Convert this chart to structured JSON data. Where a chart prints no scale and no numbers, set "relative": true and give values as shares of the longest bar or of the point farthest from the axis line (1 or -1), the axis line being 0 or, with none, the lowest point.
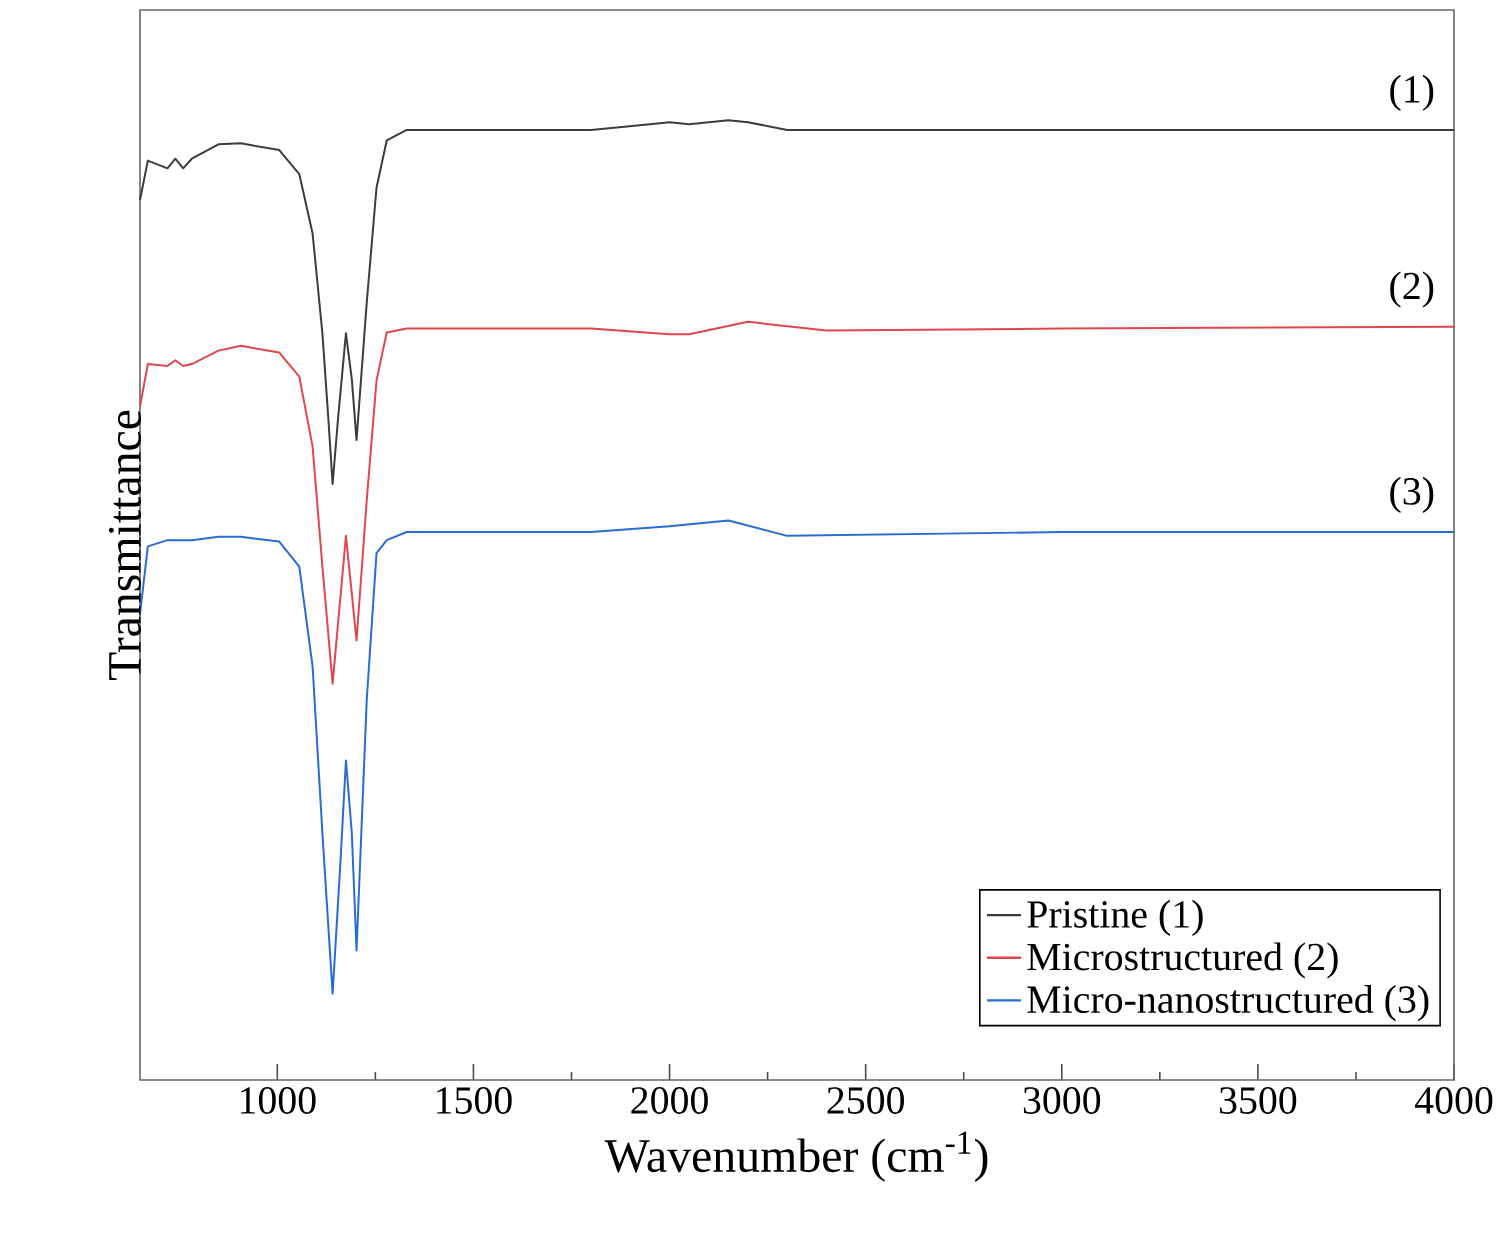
{
  "chart_data": {
    "type": "line",
    "relative": true,
    "xlabel": "Wavenumber (cm$^{-1}$)",
    "ylabel": "Transmittance",
    "xlim": [
      650,
      4000
    ],
    "xticks": [
      1000,
      1500,
      2000,
      2500,
      3000,
      3500,
      4000
    ],
    "legend": "bottom right",
    "line_style": "solid",
    "marker": "none",
    "annotations": [
      "(1)",
      "(2)",
      "(3)"
    ],
    "series": [
      {
        "name": "Pristine (1)",
        "color": "#3c3c3c",
        "x": [
          650,
          670,
          720,
          740,
          760,
          782,
          850,
          907,
          1005,
          1056,
          1090,
          1115,
          1130,
          1141,
          1155,
          1175,
          1190,
          1202,
          1228,
          1253,
          1279,
          1330,
          1500,
          1800,
          1950,
          2000,
          2050,
          2150,
          2200,
          2300,
          2500,
          3000,
          4000
        ],
        "values": [
          0.917,
          0.958,
          0.95,
          0.96,
          0.95,
          0.96,
          0.975,
          0.976,
          0.969,
          0.944,
          0.882,
          0.778,
          0.69,
          0.621,
          0.69,
          0.778,
          0.73,
          0.667,
          0.81,
          0.93,
          0.979,
          0.99,
          0.99,
          0.99,
          0.996,
          0.998,
          0.996,
          1.0,
          0.998,
          0.99,
          0.99,
          0.99,
          0.99
        ]
      },
      {
        "name": "Microstructured (2)",
        "color": "#e0474c",
        "x": [
          650,
          670,
          720,
          740,
          760,
          782,
          850,
          907,
          1005,
          1056,
          1090,
          1115,
          1141,
          1175,
          1202,
          1228,
          1253,
          1279,
          1330,
          1500,
          1800,
          2000,
          2050,
          2200,
          2400,
          3000,
          4000
        ],
        "values": [
          0.702,
          0.746,
          0.744,
          0.75,
          0.744,
          0.746,
          0.76,
          0.765,
          0.758,
          0.733,
          0.66,
          0.535,
          0.413,
          0.567,
          0.458,
          0.604,
          0.729,
          0.779,
          0.783,
          0.783,
          0.783,
          0.777,
          0.777,
          0.79,
          0.781,
          0.783,
          0.785
        ]
      },
      {
        "name": "Micro-nanostructured (3)",
        "color": "#2a6ccf",
        "x": [
          650,
          670,
          720,
          782,
          850,
          907,
          1005,
          1056,
          1090,
          1115,
          1141,
          1160,
          1175,
          1190,
          1202,
          1228,
          1253,
          1279,
          1330,
          1500,
          1800,
          2000,
          2150,
          2300,
          3000,
          4000
        ],
        "values": [
          0.486,
          0.556,
          0.5625,
          0.5625,
          0.566,
          0.566,
          0.561,
          0.535,
          0.431,
          0.257,
          0.09,
          0.22,
          0.333,
          0.257,
          0.135,
          0.396,
          0.549,
          0.5625,
          0.571,
          0.571,
          0.571,
          0.577,
          0.583,
          0.567,
          0.571,
          0.571
        ]
      }
    ]
  }
}
